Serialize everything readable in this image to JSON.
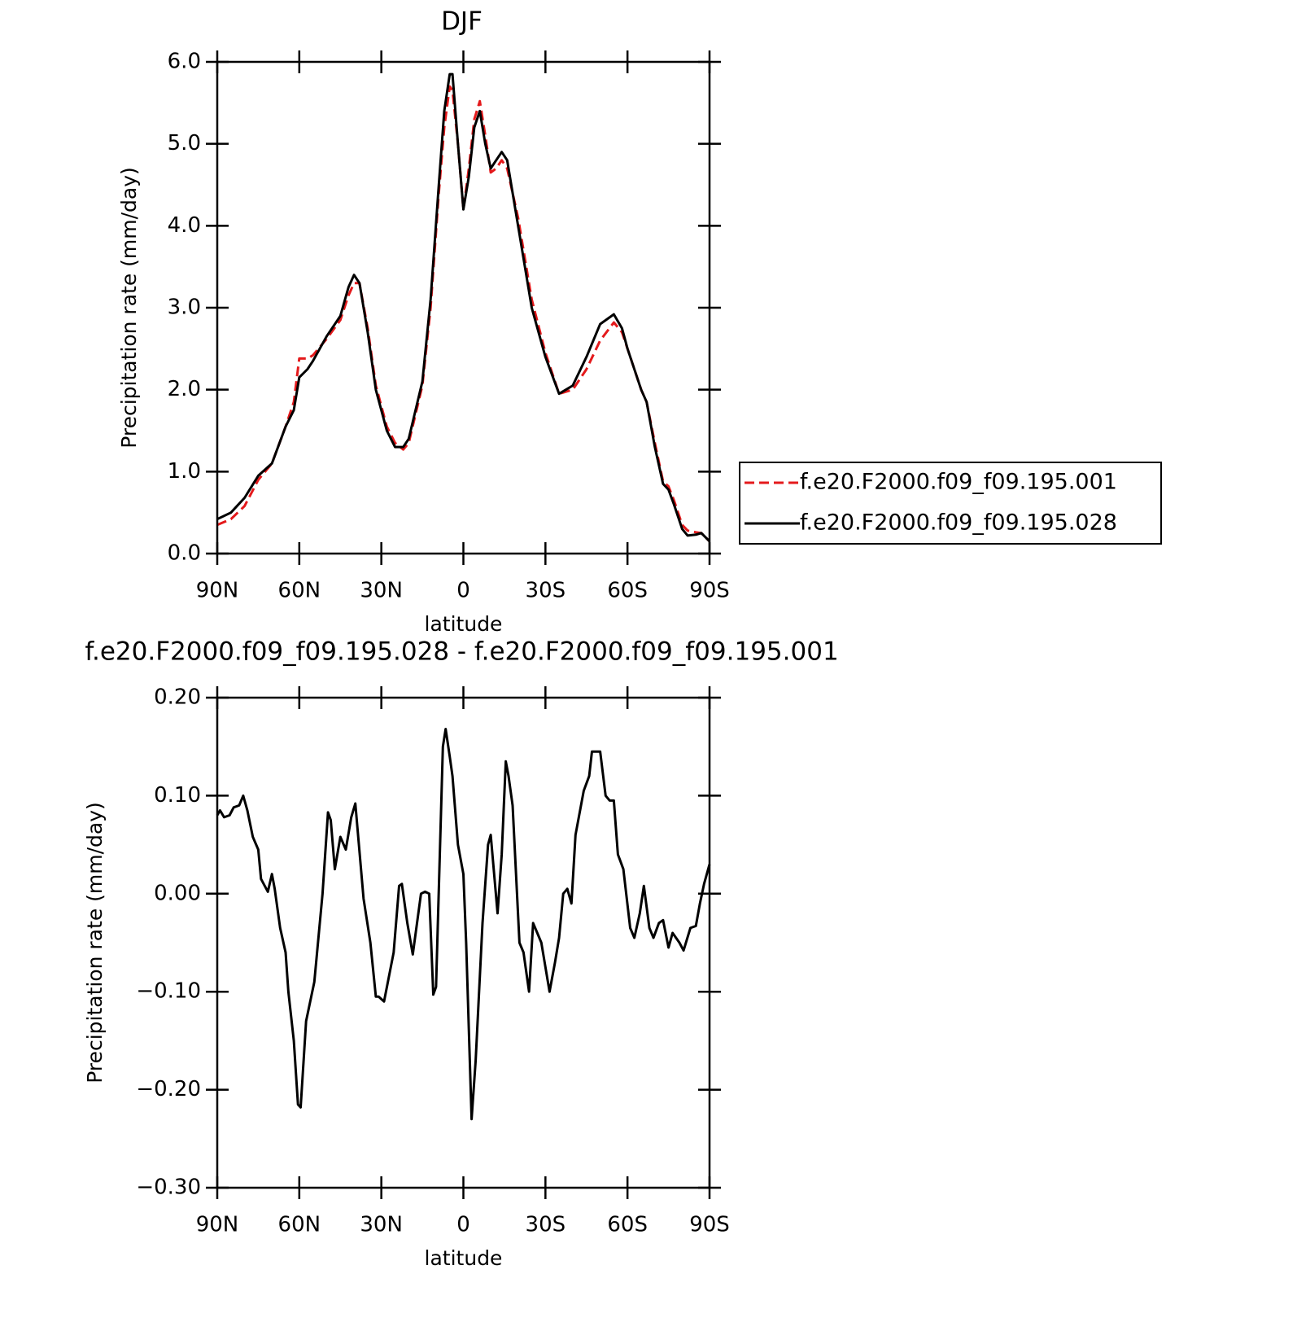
{
  "chart_data": [
    {
      "type": "line",
      "title": "DJF",
      "xlabel": "latitude",
      "ylabel": "Precipitation rate (mm/day)",
      "xlim": [
        90,
        -90
      ],
      "xticks": [
        {
          "value": 90,
          "label": "90N"
        },
        {
          "value": 60,
          "label": "60N"
        },
        {
          "value": 30,
          "label": "30N"
        },
        0,
        {
          "value": -30,
          "label": "30S"
        },
        {
          "value": -60,
          "label": "60S"
        },
        {
          "value": -90,
          "label": "90S"
        }
      ],
      "ylim": [
        0,
        6
      ],
      "yticks": [
        {
          "value": 0,
          "label": "0.0"
        },
        {
          "value": 1,
          "label": "1.0"
        },
        {
          "value": 2,
          "label": "2.0"
        },
        {
          "value": 3,
          "label": "3.0"
        },
        {
          "value": 4,
          "label": "4.0"
        },
        {
          "value": 5,
          "label": "5.0"
        },
        {
          "value": 6,
          "label": "6.0"
        }
      ],
      "legend": "right",
      "x": [
        90,
        85,
        80,
        75,
        70,
        65,
        62,
        60,
        57,
        55,
        50,
        45,
        42,
        40,
        38,
        35,
        32,
        28,
        25,
        22,
        20,
        15,
        12,
        9,
        7,
        5,
        4,
        2,
        0,
        -2,
        -4,
        -6,
        -8,
        -10,
        -12,
        -14,
        -16,
        -20,
        -25,
        -30,
        -35,
        -40,
        -45,
        -50,
        -55,
        -58,
        -60,
        -65,
        -67,
        -70,
        -73,
        -75,
        -77,
        -80,
        -82,
        -85,
        -87,
        -90
      ],
      "series": [
        {
          "name": "f.e20.F2000.f09_f09.195.001",
          "color": "#e41a1c",
          "style": "dashed",
          "values": [
            0.35,
            0.42,
            0.58,
            0.9,
            1.1,
            1.55,
            1.85,
            2.38,
            2.38,
            2.42,
            2.62,
            2.85,
            3.15,
            3.3,
            3.3,
            2.75,
            2.05,
            1.55,
            1.35,
            1.27,
            1.35,
            2.05,
            3.0,
            4.4,
            5.2,
            5.7,
            5.65,
            5.0,
            4.2,
            4.7,
            5.3,
            5.52,
            5.1,
            4.65,
            4.7,
            4.8,
            4.7,
            4.1,
            3.1,
            2.45,
            1.95,
            2.0,
            2.25,
            2.6,
            2.82,
            2.7,
            2.5,
            2.0,
            1.85,
            1.35,
            0.88,
            0.82,
            0.65,
            0.35,
            0.28,
            0.26,
            0.25,
            0.15
          ]
        },
        {
          "name": "f.e20.F2000.f09_f09.195.028",
          "color": "#000000",
          "style": "solid",
          "values": [
            0.42,
            0.5,
            0.68,
            0.95,
            1.1,
            1.55,
            1.75,
            2.15,
            2.25,
            2.35,
            2.65,
            2.9,
            3.25,
            3.4,
            3.3,
            2.7,
            2.0,
            1.5,
            1.3,
            1.3,
            1.4,
            2.1,
            3.1,
            4.5,
            5.4,
            5.85,
            5.85,
            5.0,
            4.2,
            4.6,
            5.2,
            5.4,
            5.0,
            4.7,
            4.8,
            4.9,
            4.8,
            4.0,
            3.0,
            2.4,
            1.95,
            2.05,
            2.4,
            2.8,
            2.92,
            2.75,
            2.5,
            2.0,
            1.85,
            1.3,
            0.85,
            0.78,
            0.6,
            0.3,
            0.22,
            0.23,
            0.25,
            0.15
          ]
        }
      ]
    },
    {
      "type": "line",
      "title": "f.e20.F2000.f09_f09.195.028 - f.e20.F2000.f09_f09.195.001",
      "xlabel": "latitude",
      "ylabel": "Precipitation rate (mm/day)",
      "xlim": [
        90,
        -90
      ],
      "xticks": [
        {
          "value": 90,
          "label": "90N"
        },
        {
          "value": 60,
          "label": "60N"
        },
        {
          "value": 30,
          "label": "30N"
        },
        0,
        {
          "value": -30,
          "label": "30S"
        },
        {
          "value": -60,
          "label": "60S"
        },
        {
          "value": -90,
          "label": "90S"
        }
      ],
      "ylim": [
        -0.3,
        0.2
      ],
      "yticks": [
        {
          "value": -0.3,
          "label": "−0.30"
        },
        {
          "value": -0.2,
          "label": "−0.20"
        },
        {
          "value": -0.1,
          "label": "−0.10"
        },
        {
          "value": 0,
          "label": "0.00"
        },
        {
          "value": 0.1,
          "label": "0.10"
        },
        {
          "value": 0.2,
          "label": "0.20"
        }
      ],
      "x": [
        90,
        89,
        87.5,
        85.5,
        84,
        82,
        80.5,
        79,
        77,
        75,
        74,
        71.5,
        70,
        69,
        67,
        65,
        64,
        62,
        60.5,
        59.5,
        57.5,
        54.5,
        51.5,
        49.5,
        48.5,
        47,
        45,
        43,
        41,
        39.5,
        36.5,
        34,
        32,
        31,
        29,
        25.5,
        23.5,
        22.5,
        20.5,
        18.5,
        15.5,
        14,
        12.5,
        11,
        10,
        7.5,
        6.5,
        5,
        4,
        2,
        0,
        -1,
        -3,
        -4.5,
        -7,
        -9,
        -10,
        -12.5,
        -14,
        -15.5,
        -16.5,
        -18,
        -20.5,
        -22,
        -24,
        -25.5,
        -27,
        -28.5,
        -31.5,
        -33.5,
        -35,
        -36.5,
        -38,
        -39.5,
        -41,
        -44,
        -46,
        -47,
        -50,
        -52,
        -53.5,
        -55,
        -56.5,
        -58.5,
        -61,
        -62.5,
        -64.5,
        -66,
        -68,
        -69.5,
        -71.5,
        -73,
        -75,
        -76.5,
        -79,
        -80.5,
        -83,
        -85,
        -86.5,
        -88,
        -90
      ],
      "series": [
        {
          "color": "#000000",
          "style": "solid",
          "values": [
            0.08,
            0.085,
            0.078,
            0.08,
            0.088,
            0.09,
            0.1,
            0.085,
            0.058,
            0.045,
            0.015,
            0.002,
            0.02,
            0.005,
            -0.035,
            -0.06,
            -0.1,
            -0.15,
            -0.215,
            -0.218,
            -0.13,
            -0.09,
            0.0,
            0.083,
            0.075,
            0.025,
            0.058,
            0.045,
            0.078,
            0.092,
            -0.005,
            -0.05,
            -0.105,
            -0.105,
            -0.11,
            -0.06,
            0.008,
            0.01,
            -0.03,
            -0.062,
            0.0,
            0.002,
            0.0,
            -0.103,
            -0.095,
            0.15,
            0.168,
            0.14,
            0.12,
            0.05,
            0.02,
            -0.05,
            -0.23,
            -0.17,
            -0.03,
            0.05,
            0.06,
            -0.02,
            0.04,
            0.135,
            0.12,
            0.09,
            -0.05,
            -0.06,
            -0.1,
            -0.03,
            -0.04,
            -0.05,
            -0.1,
            -0.07,
            -0.045,
            0.0,
            0.005,
            -0.01,
            0.06,
            0.105,
            0.12,
            0.145,
            0.145,
            0.1,
            0.095,
            0.095,
            0.04,
            0.025,
            -0.035,
            -0.045,
            -0.02,
            0.008,
            -0.035,
            -0.045,
            -0.03,
            -0.027,
            -0.055,
            -0.04,
            -0.05,
            -0.058,
            -0.035,
            -0.033,
            -0.01,
            0.01,
            0.03
          ]
        }
      ]
    }
  ]
}
